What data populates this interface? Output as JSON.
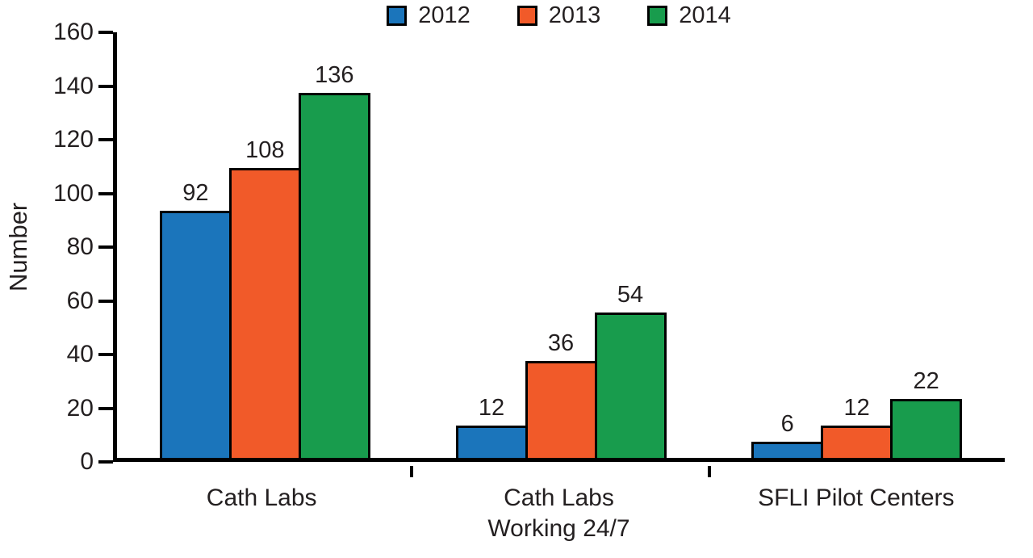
{
  "chart_data": {
    "type": "bar",
    "title": "",
    "xlabel": "",
    "ylabel": "Number",
    "ylim": [
      0,
      160
    ],
    "ytick_step": 20,
    "grid": false,
    "legend_position": "top",
    "axis_color": "#000000",
    "bar_outline_color": "#000000",
    "categories": [
      "Cath Labs",
      "Cath Labs\nWorking 24/7",
      "SFLI Pilot Centers"
    ],
    "series": [
      {
        "name": "2012",
        "color": "#1b75bb",
        "values": [
          92,
          12,
          6
        ]
      },
      {
        "name": "2013",
        "color": "#f15a29",
        "values": [
          108,
          36,
          12
        ]
      },
      {
        "name": "2014",
        "color": "#189c4d",
        "values": [
          136,
          54,
          22
        ]
      }
    ]
  }
}
